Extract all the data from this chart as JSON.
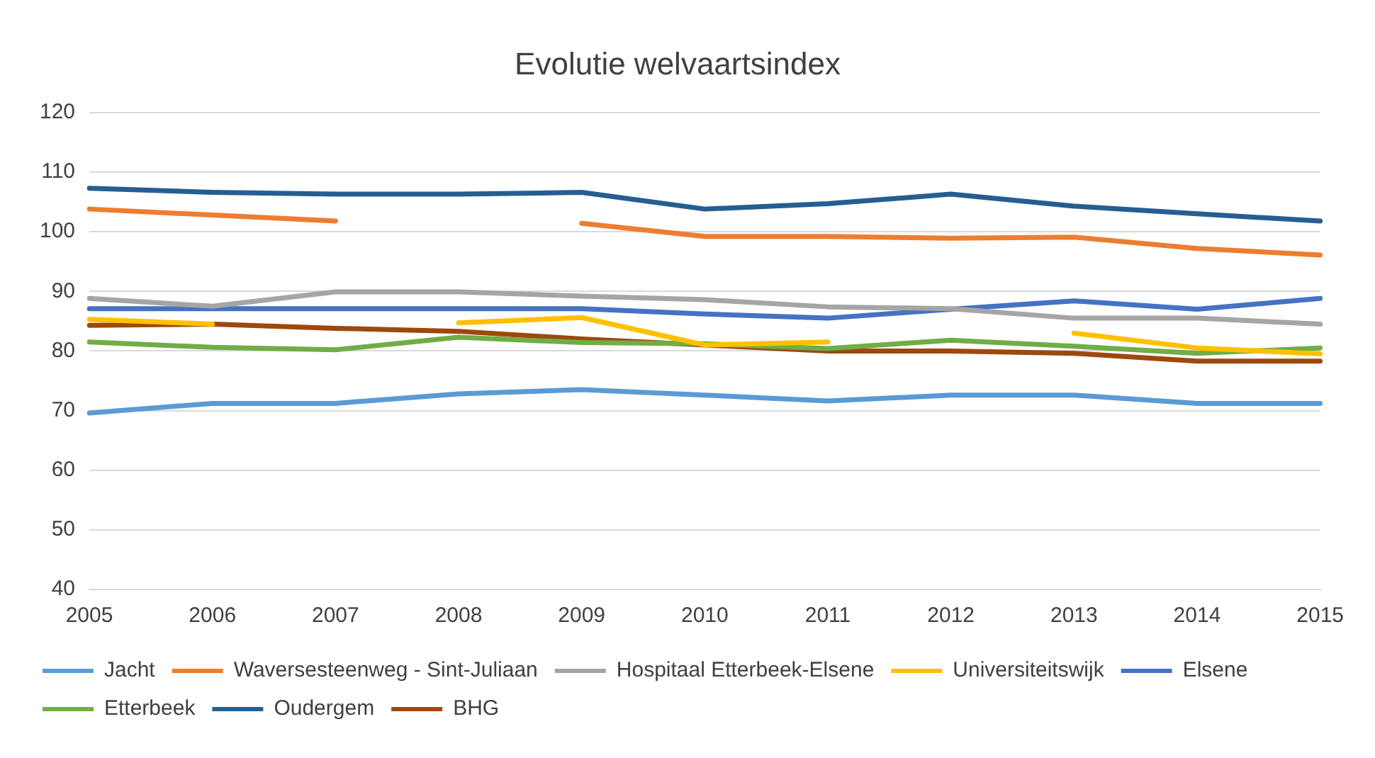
{
  "chart_data": {
    "type": "line",
    "title": "Evolutie welvaartsindex",
    "categories": [
      "2005",
      "2006",
      "2007",
      "2008",
      "2009",
      "2010",
      "2011",
      "2012",
      "2013",
      "2014",
      "2015"
    ],
    "series": [
      {
        "name": "Jacht",
        "color": "#5b9bd5",
        "values": [
          69.6,
          71.2,
          71.2,
          72.8,
          73.5,
          72.6,
          71.6,
          72.6,
          72.6,
          71.2,
          71.2
        ]
      },
      {
        "name": "Waversesteenweg - Sint-Juliaan",
        "color": "#ed7d31",
        "values": [
          103.8,
          102.8,
          101.8,
          null,
          101.4,
          99.2,
          99.2,
          98.9,
          99.1,
          97.2,
          96.1
        ]
      },
      {
        "name": "Hospitaal Etterbeek-Elsene",
        "color": "#a5a5a5",
        "values": [
          88.8,
          87.5,
          89.9,
          89.9,
          89.2,
          88.6,
          87.4,
          87.1,
          85.5,
          85.5,
          84.5
        ]
      },
      {
        "name": "Universiteitswijk",
        "color": "#ffc000",
        "values": [
          85.3,
          84.5,
          null,
          84.7,
          85.6,
          81.0,
          81.5,
          null,
          83.0,
          80.5,
          79.5
        ]
      },
      {
        "name": "Elsene",
        "color": "#4472c4",
        "values": [
          87.1,
          87.1,
          87.1,
          87.1,
          87.1,
          86.2,
          85.5,
          87.0,
          88.4,
          87.0,
          88.8
        ]
      },
      {
        "name": "Etterbeek",
        "color": "#70ad47",
        "values": [
          81.5,
          80.6,
          80.2,
          82.3,
          81.4,
          81.2,
          80.4,
          81.8,
          80.8,
          79.6,
          80.5
        ]
      },
      {
        "name": "Oudergem",
        "color": "#255e91",
        "values": [
          107.3,
          106.6,
          106.3,
          106.3,
          106.6,
          103.8,
          104.7,
          106.3,
          104.3,
          103.0,
          101.8
        ]
      },
      {
        "name": "BHG",
        "color": "#9e480e",
        "values": [
          84.3,
          84.5,
          83.8,
          83.3,
          82.0,
          81.0,
          80.0,
          80.0,
          79.6,
          78.3,
          78.3
        ]
      }
    ],
    "ylim": [
      40,
      120
    ],
    "yticks": [
      40,
      50,
      60,
      70,
      80,
      90,
      100,
      110,
      120
    ],
    "grid": "y",
    "legend": "bottom",
    "marker": "none",
    "line_style": "solid"
  }
}
